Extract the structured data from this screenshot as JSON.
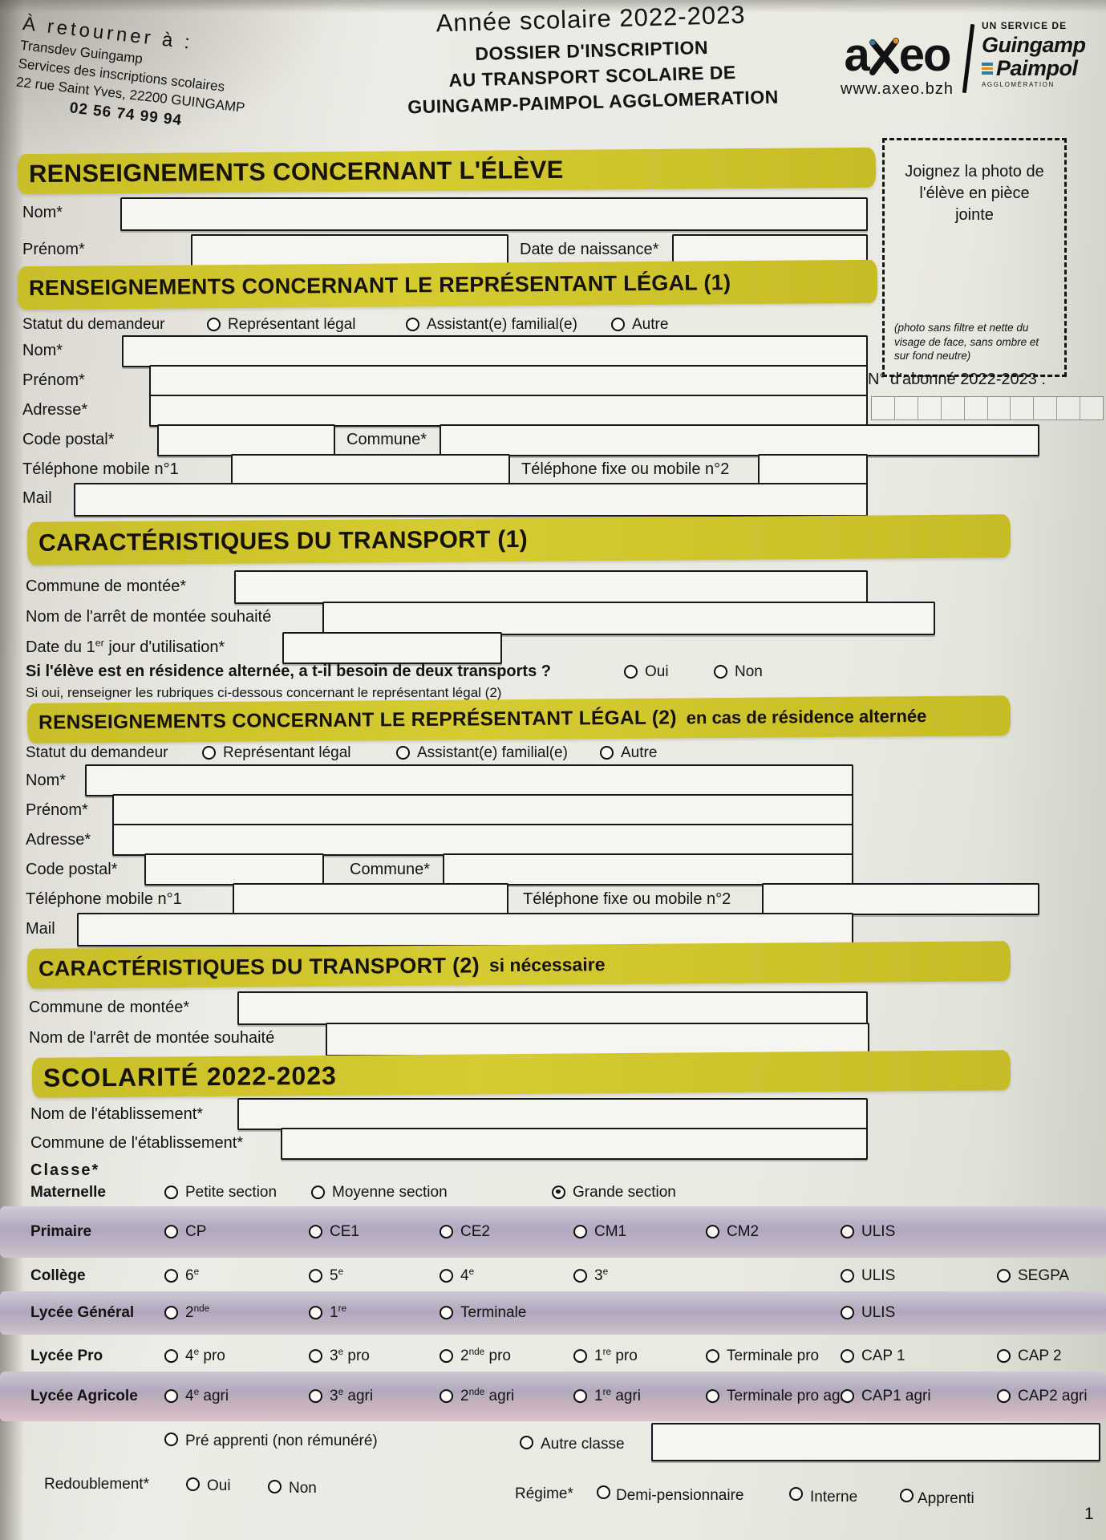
{
  "page_number": "1",
  "header": {
    "return_block": {
      "title": "À retourner à :",
      "line1": "Transdev Guingamp",
      "line2": "Services des inscriptions scolaires",
      "line3": "22 rue Saint Yves, 22200 GUINGAMP",
      "phone": "02 56 74 99 94"
    },
    "title_block": {
      "year": "Année scolaire 2022-2023",
      "line1": "DOSSIER D'INSCRIPTION",
      "line2": "AU TRANSPORT SCOLAIRE DE",
      "line3": "GUINGAMP-PAIMPOL AGGLOMERATION"
    },
    "logo": {
      "brand_a": "a",
      "brand_rest": "eo",
      "website": "www.axeo.bzh",
      "service_of": "UN SERVICE DE",
      "org_line1": "Guingamp",
      "org_line2": "Paimpol",
      "org_line3": "AGGLOMÉRATION"
    }
  },
  "photo_box": {
    "text": "Joignez la photo de l'élève en pièce jointe",
    "note": "(photo sans filtre et nette du visage de face, sans ombre et sur fond neutre)"
  },
  "subscriber": {
    "label": "N° d'abonné 2022-2023 :",
    "cells": 10
  },
  "student": {
    "title": "RENSEIGNEMENTS CONCERNANT L'ÉLÈVE",
    "nom": "Nom*",
    "prenom": "Prénom*",
    "dob": "Date de naissance*"
  },
  "legal1": {
    "title": "RENSEIGNEMENTS CONCERNANT LE REPRÉSENTANT LÉGAL (1)",
    "statut": "Statut du demandeur",
    "opt_representant": "Représentant légal",
    "opt_assistant": "Assistant(e) familial(e)",
    "opt_autre": "Autre",
    "nom": "Nom*",
    "prenom": "Prénom*",
    "adresse": "Adresse*",
    "code_postal": "Code postal*",
    "commune": "Commune*",
    "tel1": "Téléphone mobile n°1",
    "tel2": "Téléphone fixe ou mobile n°2",
    "mail": "Mail"
  },
  "transport1": {
    "title": "CARACTÉRISTIQUES DU TRANSPORT (1)",
    "commune_montee": "Commune de montée*",
    "arret": "Nom de l'arrêt de montée souhaité",
    "date_pre": "Date du 1",
    "date_sup": "er",
    "date_post": " jour d'utilisation*",
    "question": "Si l'élève est en résidence alternée, a t-il besoin de deux transports ?",
    "oui": "Oui",
    "non": "Non",
    "note": "Si oui, renseigner les rubriques ci-dessous concernant le représentant légal (2)"
  },
  "legal2": {
    "title": "RENSEIGNEMENTS CONCERNANT LE REPRÉSENTANT LÉGAL (2)",
    "title_suffix": "en cas de résidence alternée",
    "statut": "Statut du demandeur",
    "opt_representant": "Représentant légal",
    "opt_assistant": "Assistant(e) familial(e)",
    "opt_autre": "Autre",
    "nom": "Nom*",
    "prenom": "Prénom*",
    "adresse": "Adresse*",
    "code_postal": "Code postal*",
    "commune": "Commune*",
    "tel1": "Téléphone mobile n°1",
    "tel2": "Téléphone fixe ou mobile n°2",
    "mail": "Mail"
  },
  "transport2": {
    "title": "CARACTÉRISTIQUES DU TRANSPORT (2)",
    "title_suffix": "si nécessaire",
    "commune_montee": "Commune de montée*",
    "arret": "Nom de l'arrêt de montée souhaité"
  },
  "scolarite": {
    "title": "SCOLARITÉ 2022-2023",
    "etablissement": "Nom de l'établissement*",
    "commune_etablissement": "Commune de l'établissement*",
    "classe": "Classe*",
    "rows": [
      {
        "label": "Maternelle",
        "band": false,
        "grid": "m",
        "options": [
          {
            "base": "Petite section",
            "col": 0
          },
          {
            "base": "Moyenne section",
            "col": 1
          },
          {
            "base": "Grande section",
            "col": 2,
            "selected": true
          }
        ]
      },
      {
        "label": "Primaire",
        "band": true,
        "grid": "s",
        "options": [
          {
            "base": "CP",
            "col": 0
          },
          {
            "base": "CE1",
            "col": 1
          },
          {
            "base": "CE2",
            "col": 2
          },
          {
            "base": "CM1",
            "col": 3
          },
          {
            "base": "CM2",
            "col": 4
          },
          {
            "base": "ULIS",
            "col": 5
          }
        ]
      },
      {
        "label": "Collège",
        "band": false,
        "grid": "s",
        "options": [
          {
            "base": "6",
            "sup": "e",
            "col": 0
          },
          {
            "base": "5",
            "sup": "e",
            "col": 1
          },
          {
            "base": "4",
            "sup": "e",
            "col": 2
          },
          {
            "base": "3",
            "sup": "e",
            "col": 3
          },
          {
            "base": "ULIS",
            "col": 5
          },
          {
            "base": "SEGPA",
            "col": 6
          }
        ]
      },
      {
        "label": "Lycée Général",
        "band": true,
        "grid": "s",
        "options": [
          {
            "base": "2",
            "sup": "nde",
            "col": 0
          },
          {
            "base": "1",
            "sup": "re",
            "col": 1
          },
          {
            "base": "Terminale",
            "col": 2
          },
          {
            "base": "ULIS",
            "col": 5
          }
        ]
      },
      {
        "label": "Lycée Pro",
        "band": false,
        "grid": "s",
        "options": [
          {
            "base": "4",
            "sup": "e",
            "rest": " pro",
            "col": 0
          },
          {
            "base": "3",
            "sup": "e",
            "rest": " pro",
            "col": 1
          },
          {
            "base": "2",
            "sup": "nde",
            "rest": " pro",
            "col": 2
          },
          {
            "base": "1",
            "sup": "re",
            "rest": " pro",
            "col": 3
          },
          {
            "base": "Terminale pro",
            "col": 4
          },
          {
            "base": "CAP 1",
            "col": 5
          },
          {
            "base": "CAP 2",
            "col": 6
          }
        ]
      },
      {
        "label": "Lycée Agricole",
        "band": true,
        "grid": "s",
        "options": [
          {
            "base": "4",
            "sup": "e",
            "rest": " agri",
            "col": 0
          },
          {
            "base": "3",
            "sup": "e",
            "rest": " agri",
            "col": 1
          },
          {
            "base": "2",
            "sup": "nde",
            "rest": " agri",
            "col": 2
          },
          {
            "base": "1",
            "sup": "re",
            "rest": " agri",
            "col": 3
          },
          {
            "base": "Terminale pro agri",
            "col": 4
          },
          {
            "base": "CAP1 agri",
            "col": 5
          },
          {
            "base": "CAP2 agri",
            "col": 6
          }
        ]
      }
    ],
    "pre_apprenti": "Pré apprenti (non rémunéré)",
    "autre_classe": "Autre classe",
    "redoublement": {
      "label": "Redoublement*",
      "oui": "Oui",
      "non": "Non"
    },
    "regime": {
      "label": "Régime*",
      "options": [
        "Demi-pensionnaire",
        "Interne",
        "Apprenti"
      ]
    }
  }
}
